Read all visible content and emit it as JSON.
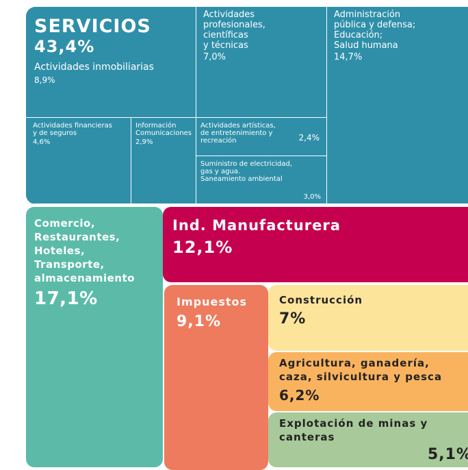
{
  "services": {
    "title": "SERVICIOS",
    "value": "43,4%",
    "tiles": [
      {
        "lines": [
          "Actividades inmobiliarias"
        ],
        "value": "8,9%"
      },
      {
        "lines": [
          "Actividades financieras",
          "y de seguros"
        ],
        "value": "4,6%"
      },
      {
        "lines": [
          "Información",
          "Comunicaciones"
        ],
        "value": "2,9%"
      },
      {
        "lines": [
          "Actividades",
          "profesionales,",
          "científicas",
          "y técnicas"
        ],
        "value": "7,0%"
      },
      {
        "lines": [
          "Actividades artísticas,",
          "de entretenimiento y",
          "recreación"
        ],
        "value": "2,4%"
      },
      {
        "lines": [
          "Suministro de electricidad,",
          "gas y agua.",
          "Saneamiento ambiental"
        ],
        "value": "3,0%"
      },
      {
        "lines": [
          "Administración",
          "pública y defensa;",
          "Educación;",
          "Salud humana"
        ],
        "value": "14,7%"
      }
    ]
  },
  "sectors": [
    {
      "lines": [
        "Comercio,",
        "Restaurantes,",
        "Hoteles,",
        "Transporte,",
        "almacenamiento"
      ],
      "value": "17,1%"
    },
    {
      "lines": [
        "Ind. Manufacturera"
      ],
      "value": "12,1%"
    },
    {
      "lines": [
        "Impuestos"
      ],
      "value": "9,1%"
    },
    {
      "lines": [
        "Construcción"
      ],
      "value": "7%"
    },
    {
      "lines": [
        "Agricultura, ganadería,",
        "caza, silvicultura y pesca"
      ],
      "value": "6,2%"
    },
    {
      "lines": [
        "Explotación de minas y",
        "canteras"
      ],
      "value": "5,1%"
    }
  ]
}
